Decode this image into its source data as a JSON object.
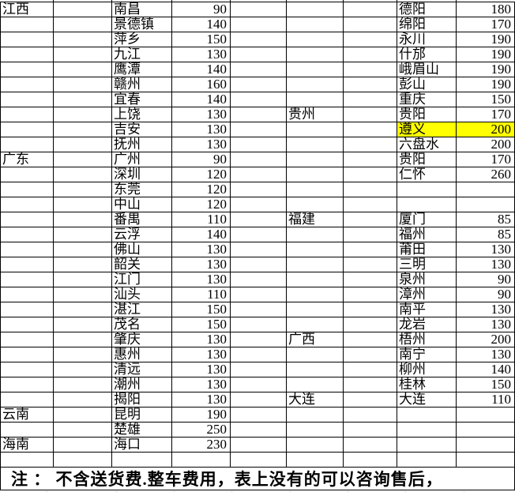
{
  "colors": {
    "highlight": "#FFFF00",
    "border": "#000000",
    "gridline": "#C0C0C0",
    "text": "#000000",
    "background": "#FFFFFF"
  },
  "note": {
    "text": "注 ： 不含送货费.整车费用，表上没有的可以咨询售后，"
  },
  "table": {
    "left_rows": [
      {
        "province": "江西",
        "city": "南昌",
        "value": "90"
      },
      {
        "province": "",
        "city": "景德镇",
        "value": "140"
      },
      {
        "province": "",
        "city": "萍乡",
        "value": "150"
      },
      {
        "province": "",
        "city": "九江",
        "value": "130"
      },
      {
        "province": "",
        "city": "鹰潭",
        "value": "140"
      },
      {
        "province": "",
        "city": "赣州",
        "value": "160"
      },
      {
        "province": "",
        "city": "宜春",
        "value": "140"
      },
      {
        "province": "",
        "city": "上饶",
        "value": "130"
      },
      {
        "province": "",
        "city": "吉安",
        "value": "130"
      },
      {
        "province": "",
        "city": "抚州",
        "value": "130"
      },
      {
        "province": "广东",
        "city": "广州",
        "value": "90"
      },
      {
        "province": "",
        "city": "深圳",
        "value": "120"
      },
      {
        "province": "",
        "city": "东莞",
        "value": "120"
      },
      {
        "province": "",
        "city": "中山",
        "value": "120"
      },
      {
        "province": "",
        "city": "番禺",
        "value": "110"
      },
      {
        "province": "",
        "city": "云浮",
        "value": "140"
      },
      {
        "province": "",
        "city": "佛山",
        "value": "130"
      },
      {
        "province": "",
        "city": "韶关",
        "value": "130"
      },
      {
        "province": "",
        "city": "江门",
        "value": "130"
      },
      {
        "province": "",
        "city": "汕头",
        "value": "110"
      },
      {
        "province": "",
        "city": "湛江",
        "value": "150"
      },
      {
        "province": "",
        "city": "茂名",
        "value": "150"
      },
      {
        "province": "",
        "city": "肇庆",
        "value": "130"
      },
      {
        "province": "",
        "city": "惠州",
        "value": "130"
      },
      {
        "province": "",
        "city": "清远",
        "value": "130"
      },
      {
        "province": "",
        "city": "潮州",
        "value": "130"
      },
      {
        "province": "",
        "city": "揭阳",
        "value": "130"
      },
      {
        "province": "云南",
        "city": "昆明",
        "value": "190"
      },
      {
        "province": "",
        "city": "楚雄",
        "value": "250"
      },
      {
        "province": "海南",
        "city": "海口",
        "value": "230"
      },
      {
        "province": "",
        "city": "",
        "value": ""
      }
    ],
    "right_rows": [
      {
        "province": "",
        "city": "德阳",
        "value": "180"
      },
      {
        "province": "",
        "city": "绵阳",
        "value": "170"
      },
      {
        "province": "",
        "city": "永川",
        "value": "190"
      },
      {
        "province": "",
        "city": "什邡",
        "value": "190"
      },
      {
        "province": "",
        "city": "峨眉山",
        "value": "190"
      },
      {
        "province": "",
        "city": "彭山",
        "value": "190"
      },
      {
        "province": "",
        "city": "重庆",
        "value": "150"
      },
      {
        "province": "贵州",
        "city": "贵阳",
        "value": "170"
      },
      {
        "province": "",
        "city": "遵义",
        "value": "200",
        "highlight": true
      },
      {
        "province": "",
        "city": "六盘水",
        "value": "200"
      },
      {
        "province": "",
        "city": "贵阳",
        "value": "170"
      },
      {
        "province": "",
        "city": "仁怀",
        "value": "260"
      },
      {
        "province": "",
        "city": "",
        "value": ""
      },
      {
        "province": "",
        "city": "",
        "value": ""
      },
      {
        "province": "福建",
        "city": "厦门",
        "value": "85"
      },
      {
        "province": "",
        "city": "福州",
        "value": "85"
      },
      {
        "province": "",
        "city": "莆田",
        "value": "130"
      },
      {
        "province": "",
        "city": "三明",
        "value": "130"
      },
      {
        "province": "",
        "city": "泉州",
        "value": "90"
      },
      {
        "province": "",
        "city": "漳州",
        "value": "90"
      },
      {
        "province": "",
        "city": "南平",
        "value": "130"
      },
      {
        "province": "",
        "city": "龙岩",
        "value": "130"
      },
      {
        "province": "广西",
        "city": "梧州",
        "value": "200"
      },
      {
        "province": "",
        "city": "南宁",
        "value": "130"
      },
      {
        "province": "",
        "city": "柳州",
        "value": "140"
      },
      {
        "province": "",
        "city": "桂林",
        "value": "150"
      },
      {
        "province": "大连",
        "city": "大连",
        "value": "110"
      },
      {
        "province": "",
        "city": "",
        "value": ""
      },
      {
        "province": "",
        "city": "",
        "value": ""
      },
      {
        "province": "",
        "city": "",
        "value": ""
      },
      {
        "province": "",
        "city": "",
        "value": ""
      }
    ]
  }
}
